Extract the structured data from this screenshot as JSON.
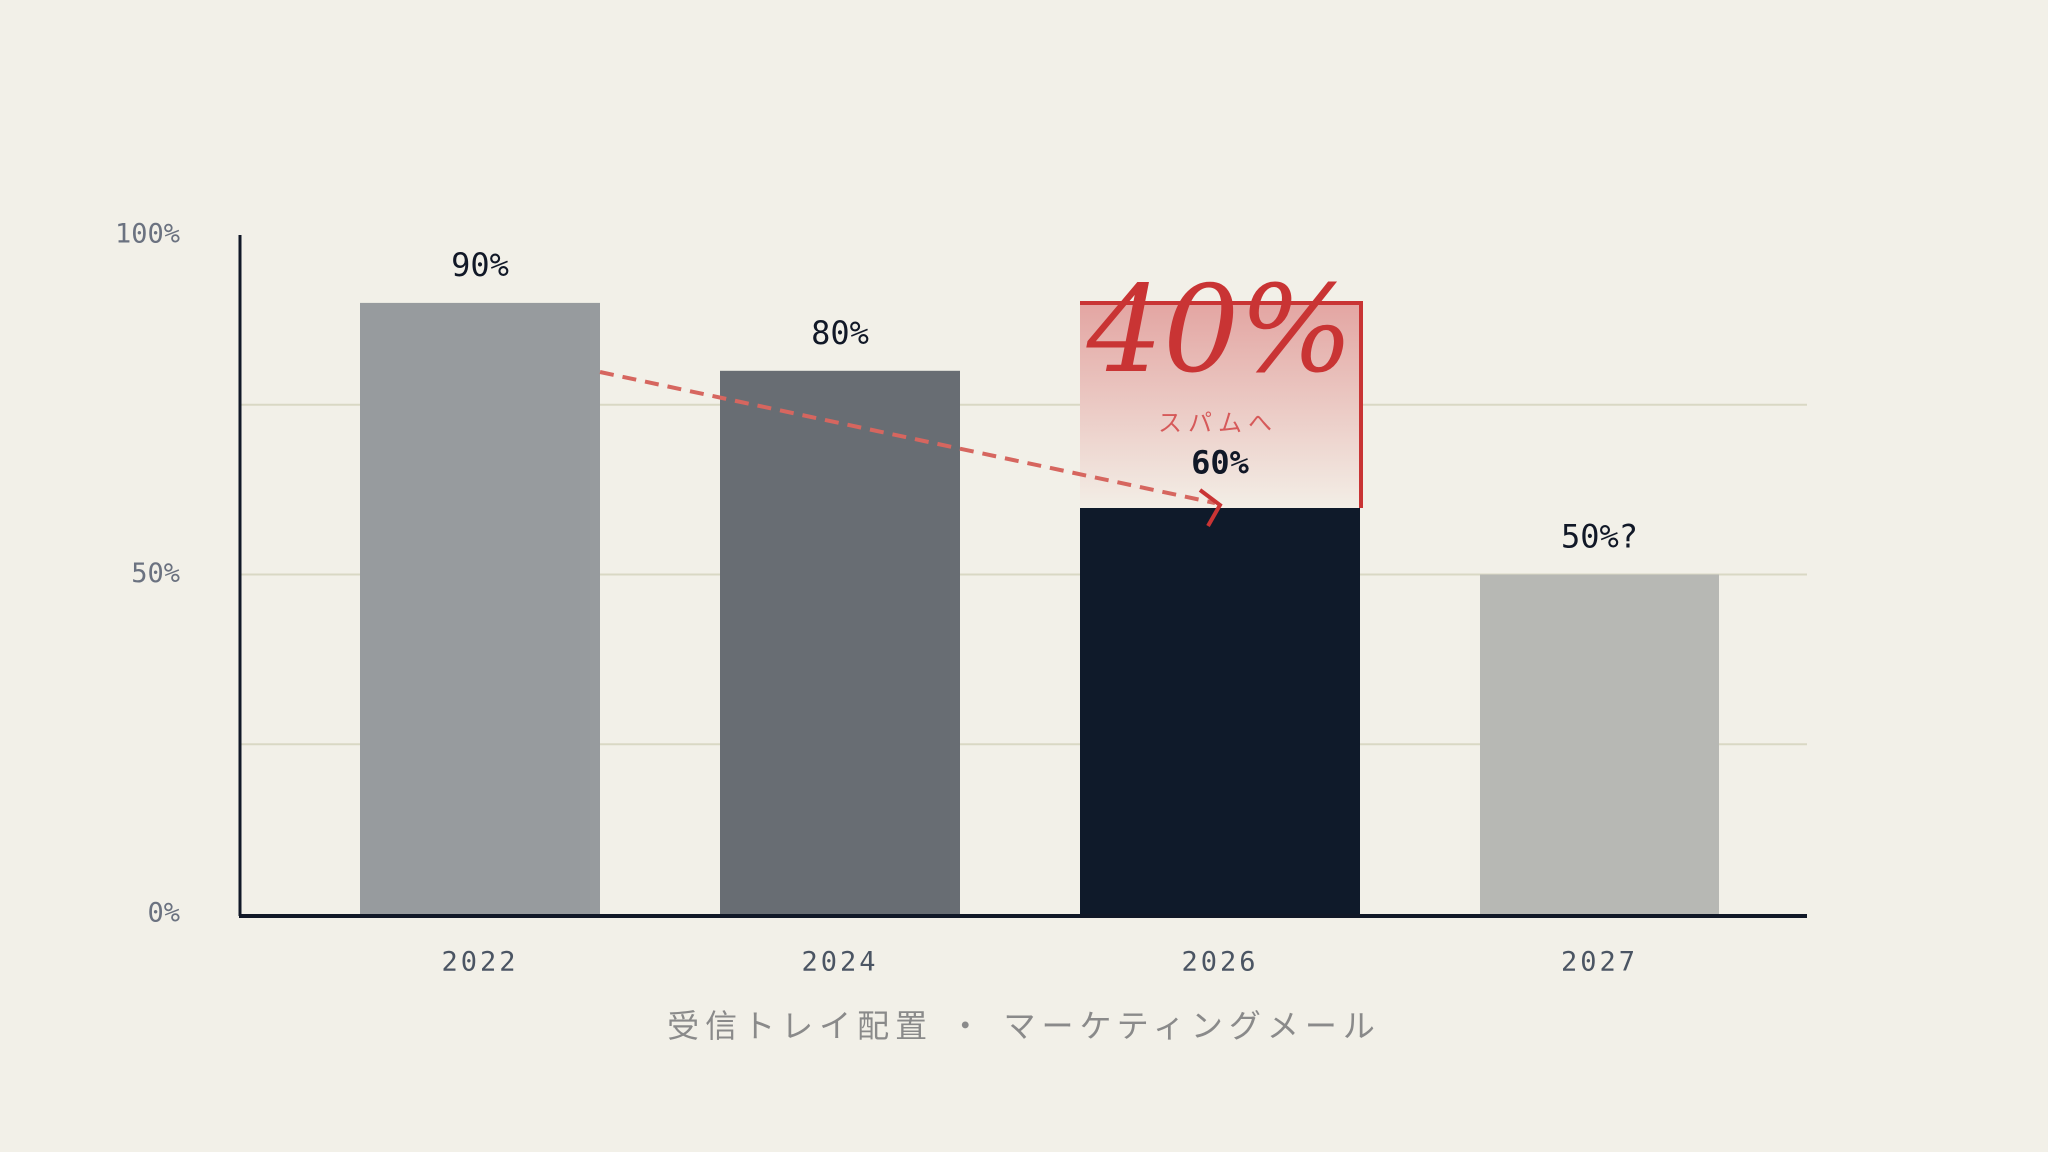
{
  "chart_data": {
    "type": "bar",
    "categories": [
      "2022",
      "2024",
      "2026",
      "2027"
    ],
    "values": [
      90,
      80,
      60,
      50
    ],
    "value_labels": [
      "90%",
      "80%",
      "60%",
      "50%?"
    ],
    "colors": [
      "#979b9e",
      "#686d73",
      "#0f1a2a",
      "#b7b8b4"
    ],
    "ylim": [
      0,
      100
    ],
    "yticks": [
      {
        "value": 0,
        "label": "0%"
      },
      {
        "value": 50,
        "label": "50%"
      },
      {
        "value": 100,
        "label": "100%"
      }
    ],
    "grid_values": [
      25,
      50,
      75
    ],
    "grid": true,
    "annotation": {
      "value": "40%",
      "text": "スパムへ"
    },
    "caption": "受信トレイ配置 ・ マーケティングメール"
  }
}
